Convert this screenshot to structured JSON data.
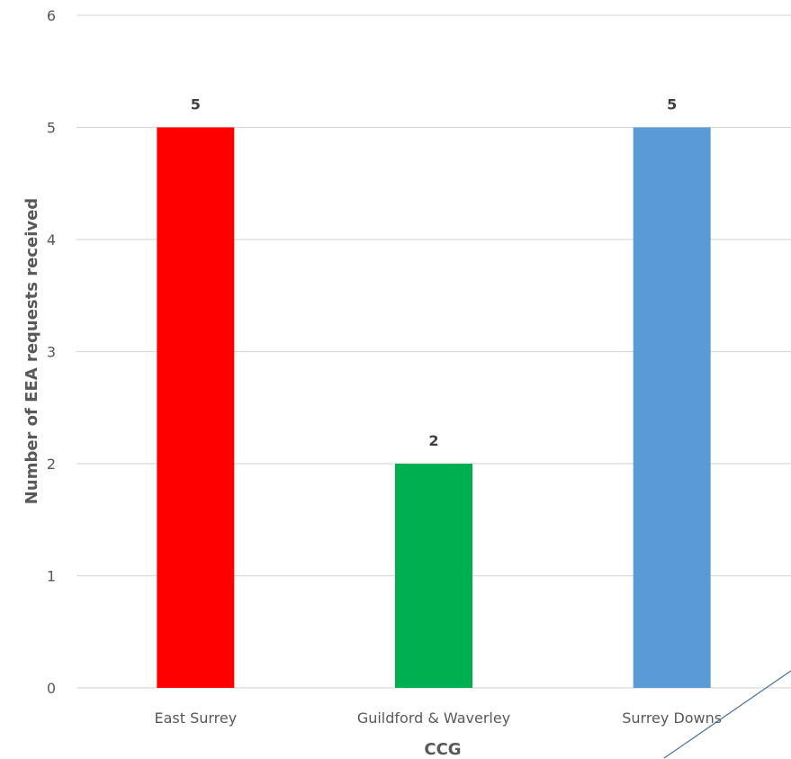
{
  "chart_data": {
    "type": "bar",
    "title": "",
    "xlabel": "CCG",
    "ylabel": "Number of EEA requests received",
    "categories": [
      "East Surrey",
      "Guildford & Waverley",
      "Surrey Downs"
    ],
    "values": [
      5,
      2,
      5
    ],
    "data_labels": [
      "5",
      "2",
      "5"
    ],
    "bar_colors": [
      "#ff0000",
      "#00b050",
      "#5b9bd5"
    ],
    "ylim": [
      0,
      6
    ],
    "yticks": [
      "0",
      "1",
      "2",
      "3",
      "4",
      "5",
      "6"
    ],
    "grid": true,
    "legend": "none"
  },
  "colors": {
    "gridline": "#d9d9d9",
    "axis_text": "#595959",
    "stray_line": "#4a6fa5"
  }
}
